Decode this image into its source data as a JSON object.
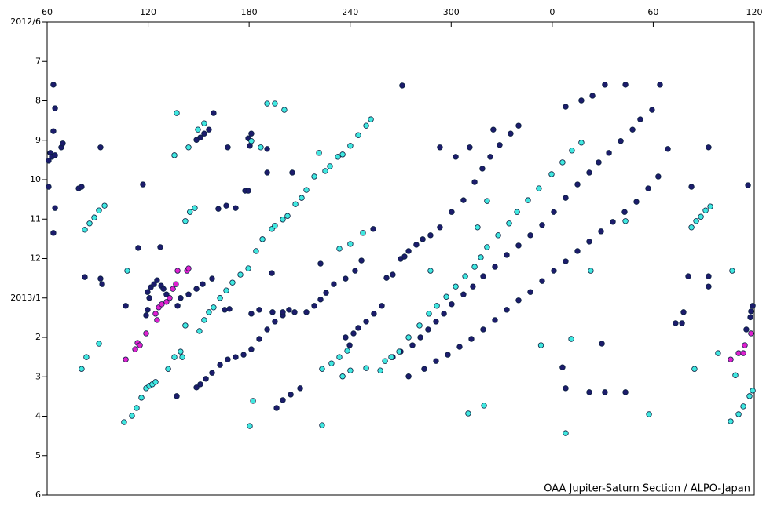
{
  "chart_data": {
    "type": "scatter",
    "annotation": "OAA Jupiter-Saturn Section / ALPO-Japan",
    "xlim": [
      60,
      480
    ],
    "xticks": [
      60,
      120,
      180,
      240,
      300,
      {
        "value": 360,
        "label": "0"
      },
      {
        "value": 420,
        "label": "60"
      },
      {
        "value": 480,
        "label": "120"
      }
    ],
    "ylim": [
      0,
      12
    ],
    "y_reversed": true,
    "yticks": [
      {
        "value": 0,
        "label": "2012/6"
      },
      {
        "value": 1,
        "label": "7"
      },
      {
        "value": 2,
        "label": "8"
      },
      {
        "value": 3,
        "label": "9"
      },
      {
        "value": 4,
        "label": "10"
      },
      {
        "value": 5,
        "label": "11"
      },
      {
        "value": 6,
        "label": "12"
      },
      {
        "value": 7,
        "label": "2013/1"
      },
      {
        "value": 8,
        "label": "2"
      },
      {
        "value": 9,
        "label": "3"
      },
      {
        "value": 10,
        "label": "4"
      },
      {
        "value": 11,
        "label": "5"
      },
      {
        "value": 12,
        "label": "6"
      }
    ],
    "series": [
      {
        "color": "#1c1c6c",
        "x": [
          63.7,
          64.7,
          63.7,
          61.9,
          60.9,
          62.8,
          64.7,
          68.4,
          69.3,
          60.9,
          64.7,
          63.7,
          78.7,
          80.5,
          82.4,
          91.7,
          91.7,
          92.7,
          116.9,
          106.7,
          119.7,
          118.8,
          119.7,
          120.7,
          121.6,
          123.5,
          125.3,
          127.7,
          129.1,
          130.9,
          114.1,
          127.2,
          137.5,
          139.3,
          144,
          148.7,
          152.4,
          158,
          165.5,
          168.3,
          158.9,
          156.1,
          153.3,
          151,
          148.7,
          167.3,
          161.7,
          166.4,
          172,
          177.6,
          179.5,
          190.7,
          205.6,
          190.7,
          179.5,
          181.3,
          180.4,
          137,
          148.7,
          151,
          154.3,
          158,
          162.7,
          167.3,
          172,
          176.7,
          181.3,
          186,
          190.7,
          195.3,
          200,
          203.7,
          207,
          214,
          218.7,
          222.4,
          225.7,
          230.3,
          237.3,
          242.9,
          246.7,
          253.7,
          222.4,
          193.5,
          196.3,
          200,
          204.7,
          210.3,
          181.3,
          186,
          193.9,
          200,
          239.7,
          237.3,
          242,
          244.8,
          249.5,
          254.1,
          258.8,
          261.6,
          265.3,
          270,
          272.3,
          274.7,
          279.3,
          283.1,
          287.7,
          293.3,
          300.3,
          307.3,
          313.9,
          318.5,
          323.2,
          328.8,
          335.3,
          340,
          265.3,
          270,
          277,
          281.7,
          286.3,
          291,
          295.7,
          300.3,
          307.3,
          312.9,
          319,
          326,
          333,
          340,
          347,
          354,
          361,
          368,
          375,
          382,
          387.6,
          393.7,
          400.7,
          407.7,
          412.3,
          419.3,
          274.7,
          284,
          291,
          298,
          305,
          312,
          319,
          326,
          333,
          340,
          347,
          354,
          361,
          368,
          375,
          382,
          389,
          396,
          403,
          410,
          417,
          423,
          428.7,
          270.9,
          293.3,
          302.7,
          311,
          325,
          368,
          377.3,
          383.9,
          391.3,
          403.5,
          424,
          382,
          391.3,
          403.5,
          366.1,
          368,
          389.5,
          442.7,
          440.8,
          438,
          452.9,
          452.9,
          452.9,
          476.3,
          478.1,
          479.1,
          477.7,
          475.3,
          433.3,
          437.1
        ],
        "values": [
          1.59,
          2.19,
          2.77,
          3.32,
          3.52,
          3.42,
          3.38,
          3.18,
          3.08,
          4.18,
          4.72,
          5.35,
          4.22,
          4.18,
          6.47,
          3.18,
          6.51,
          6.65,
          4.12,
          7.2,
          7.3,
          7.44,
          6.85,
          7.0,
          6.73,
          6.65,
          6.55,
          6.69,
          6.77,
          6.91,
          5.73,
          5.71,
          7.2,
          7.0,
          6.91,
          6.77,
          6.65,
          6.51,
          7.3,
          7.28,
          2.31,
          2.73,
          2.83,
          2.93,
          2.99,
          3.18,
          4.74,
          4.66,
          4.72,
          4.28,
          4.28,
          3.82,
          3.82,
          3.22,
          2.95,
          2.83,
          3.14,
          9.49,
          9.27,
          9.19,
          9.05,
          8.9,
          8.7,
          8.56,
          8.5,
          8.44,
          8.3,
          8.04,
          7.8,
          7.6,
          7.44,
          7.3,
          7.36,
          7.36,
          7.2,
          7.04,
          6.87,
          6.65,
          6.51,
          6.31,
          6.05,
          5.25,
          6.13,
          6.37,
          9.79,
          9.59,
          9.45,
          9.29,
          7.4,
          7.3,
          7.36,
          7.36,
          8.2,
          8.0,
          7.9,
          7.76,
          7.6,
          7.4,
          7.2,
          6.49,
          6.41,
          6.01,
          5.95,
          5.81,
          5.65,
          5.51,
          5.41,
          5.21,
          4.82,
          4.52,
          4.06,
          3.72,
          3.42,
          3.12,
          2.83,
          2.63,
          8.5,
          8.36,
          8.2,
          8.0,
          7.8,
          7.6,
          7.4,
          7.16,
          6.91,
          6.71,
          6.45,
          6.21,
          5.91,
          5.67,
          5.41,
          5.15,
          4.82,
          4.46,
          4.12,
          3.82,
          3.56,
          3.32,
          3.02,
          2.73,
          2.47,
          2.23,
          8.99,
          8.8,
          8.6,
          8.44,
          8.24,
          8.04,
          7.8,
          7.56,
          7.3,
          7.06,
          6.85,
          6.57,
          6.31,
          6.07,
          5.81,
          5.57,
          5.31,
          5.07,
          4.82,
          4.56,
          4.22,
          3.92,
          3.22,
          1.61,
          3.18,
          3.42,
          3.18,
          2.73,
          2.15,
          1.99,
          1.87,
          1.59,
          1.59,
          1.59,
          9.39,
          9.39,
          9.39,
          8.76,
          9.29,
          8.16,
          4.18,
          6.45,
          7.36,
          3.18,
          6.45,
          6.71,
          4.14,
          7.34,
          7.2,
          7.49,
          7.8,
          7.64,
          7.64
        ]
      },
      {
        "color": "#40e8e0",
        "x": [
          107.6,
          105.7,
          110.4,
          113.2,
          116,
          118.8,
          120.7,
          122.5,
          124.4,
          131.9,
          135.6,
          142.1,
          139.3,
          140.3,
          150.5,
          153.3,
          156.1,
          158.9,
          162.7,
          166.4,
          170.1,
          174.8,
          179.5,
          184.1,
          187.9,
          193.5,
          195.3,
          200,
          202.8,
          207.5,
          211.2,
          214,
          218.7,
          225.2,
          228,
          232.7,
          235.5,
          240.1,
          244.8,
          249.5,
          252.3,
          190.7,
          195.3,
          200.9,
          181.3,
          186.9,
          221.5,
          180.4,
          182.3,
          223.3,
          223.3,
          228.9,
          233.6,
          238.3,
          233.6,
          240.1,
          247.6,
          235.5,
          240.1,
          249.5,
          257.9,
          260.7,
          264.4,
          269.1,
          274.7,
          281.2,
          286.8,
          291.5,
          297.1,
          302.7,
          308.3,
          313.9,
          317.6,
          321.3,
          327.9,
          334.4,
          339.1,
          345.6,
          352.1,
          359.6,
          366.1,
          371.7,
          377.3,
          287.7,
          315.7,
          321.3,
          353.3,
          371.3,
          368,
          310.1,
          319.5,
          417.5,
          382.9,
          403.5,
          442.7,
          445.5,
          448.3,
          451.1,
          453.9,
          444.5,
          458.5,
          466.9,
          468.8,
          473.5,
          477.2,
          479.1,
          466,
          470.7,
          80.5,
          83.3,
          90.8,
          137,
          135.6,
          144,
          149.6,
          153.3,
          142.1,
          144.8,
          147.7,
          82.4,
          85.2,
          88,
          90.8,
          94.1
        ],
        "values": [
          6.31,
          10.15,
          9.99,
          9.79,
          9.53,
          9.29,
          9.23,
          9.19,
          9.13,
          8.8,
          8.5,
          7.7,
          8.36,
          8.5,
          7.84,
          7.56,
          7.36,
          7.24,
          7.0,
          6.81,
          6.61,
          6.41,
          6.25,
          5.81,
          5.51,
          5.25,
          5.17,
          5.01,
          4.92,
          4.62,
          4.46,
          4.26,
          3.92,
          3.78,
          3.66,
          3.42,
          3.36,
          3.14,
          2.87,
          2.63,
          2.47,
          2.07,
          2.07,
          2.23,
          3.02,
          3.18,
          3.32,
          10.25,
          9.61,
          10.23,
          8.8,
          8.66,
          8.5,
          8.34,
          5.75,
          5.63,
          5.35,
          8.99,
          8.84,
          8.78,
          8.84,
          8.6,
          8.5,
          8.36,
          8.0,
          7.7,
          7.4,
          7.2,
          6.97,
          6.71,
          6.45,
          6.21,
          5.97,
          5.71,
          5.41,
          5.11,
          4.82,
          4.52,
          4.22,
          3.86,
          3.56,
          3.26,
          3.06,
          6.31,
          5.21,
          4.54,
          8.2,
          8.04,
          10.43,
          9.93,
          9.73,
          9.95,
          6.31,
          5.05,
          5.21,
          5.05,
          4.94,
          4.78,
          4.68,
          8.8,
          8.4,
          6.31,
          8.96,
          9.75,
          9.49,
          9.35,
          10.13,
          9.95,
          8.8,
          8.5,
          8.16,
          2.31,
          3.38,
          3.18,
          2.73,
          2.57,
          5.05,
          4.82,
          4.72,
          5.27,
          5.11,
          4.96,
          4.78,
          4.66
        ]
      },
      {
        "color": "#e020d0",
        "x": [
          106.7,
          112.3,
          113.7,
          115.1,
          118.8,
          124.4,
          126.3,
          128.1,
          130.9,
          132.8,
          134.7,
          136.5,
          137.5,
          143.1,
          144,
          125.3,
          466,
          470.7,
          473.5,
          474.4,
          478.1
        ],
        "values": [
          8.56,
          8.3,
          8.14,
          8.2,
          7.9,
          7.4,
          7.24,
          7.16,
          7.1,
          7.0,
          6.77,
          6.65,
          6.31,
          6.31,
          6.25,
          7.56,
          8.56,
          8.4,
          8.4,
          8.2,
          7.9
        ]
      }
    ]
  }
}
